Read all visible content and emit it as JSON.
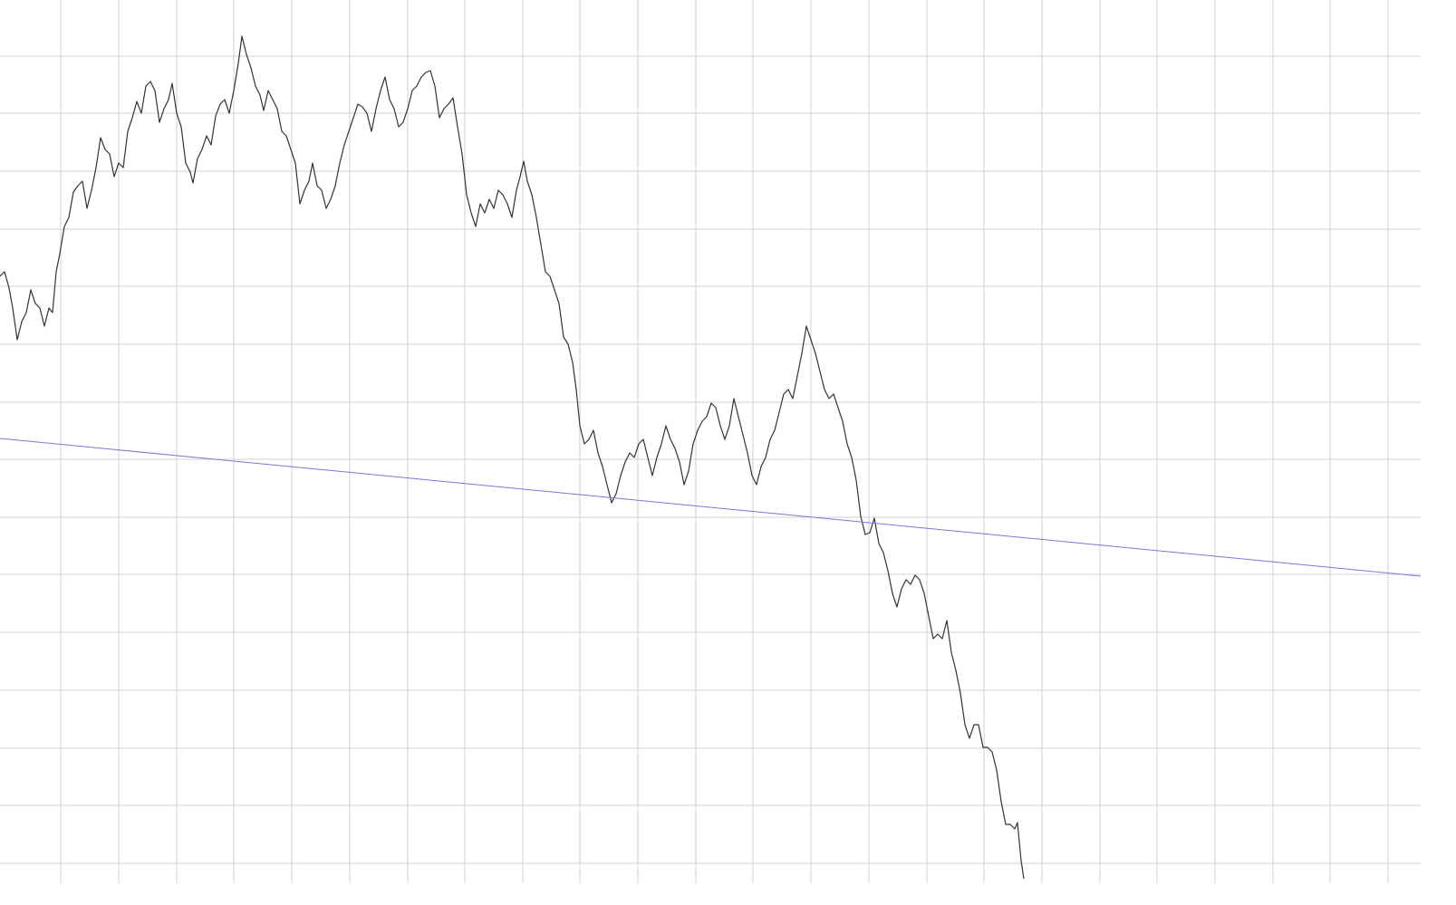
{
  "chart_data": {
    "type": "line",
    "xlim": [
      0,
      1568
    ],
    "ylim": [
      0,
      975
    ],
    "xticks": [
      67,
      131,
      195,
      258,
      322,
      386,
      450,
      513,
      577,
      640,
      704,
      768,
      831,
      895,
      959,
      1023,
      1086,
      1150,
      1214,
      1277,
      1341,
      1405,
      1468,
      1532
    ],
    "yticks": [
      22,
      86,
      149,
      213,
      277,
      341,
      404,
      468,
      531,
      595,
      659,
      722,
      786,
      850,
      913
    ],
    "grid": true,
    "series": [
      {
        "color": "#333333",
        "x": [
          0,
          5,
          10,
          14,
          19,
          24,
          29,
          34,
          39,
          44,
          49,
          54,
          58,
          62,
          66,
          71,
          76,
          81,
          86,
          91,
          96,
          101,
          106,
          111,
          116,
          121,
          126,
          131,
          136,
          141,
          146,
          151,
          156,
          161,
          166,
          171,
          176,
          181,
          186,
          190,
          195,
          200,
          205,
          210,
          213,
          218,
          223,
          228,
          233,
          238,
          243,
          248,
          253,
          258,
          263,
          267,
          272,
          277,
          282,
          287,
          291,
          296,
          301,
          306,
          311,
          316,
          321,
          326,
          331,
          336,
          341,
          345,
          350,
          355,
          360,
          365,
          370,
          375,
          380,
          385,
          390,
          395,
          400,
          405,
          410,
          415,
          420,
          425,
          430,
          435,
          440,
          445,
          450,
          455,
          460,
          465,
          470,
          475,
          480,
          485,
          490,
          495,
          500,
          505,
          510,
          515,
          520,
          525,
          530,
          535,
          540,
          545,
          550,
          555,
          560,
          565,
          570,
          574,
          578,
          582,
          587,
          592,
          597,
          602,
          607,
          612,
          617,
          622,
          627,
          632,
          636,
          640,
          645,
          650,
          655,
          660,
          665,
          670,
          675,
          680,
          685,
          690,
          695,
          700,
          705,
          710,
          715,
          720,
          725,
          730,
          735,
          740,
          745,
          750,
          755,
          760,
          765,
          770,
          775,
          780,
          785,
          790,
          795,
          800,
          805,
          810,
          815,
          820,
          825,
          830,
          835,
          840,
          845,
          850,
          855,
          860,
          865,
          870,
          875,
          880,
          885,
          890,
          895,
          900,
          905,
          910,
          915,
          920,
          925,
          930,
          935,
          940,
          945,
          950,
          955,
          960,
          965,
          970,
          975,
          980,
          985,
          990,
          995,
          1000,
          1005,
          1010,
          1015,
          1020,
          1025,
          1030,
          1035,
          1040,
          1045,
          1050,
          1055,
          1060,
          1065,
          1070,
          1075,
          1080,
          1085,
          1090,
          1095,
          1100,
          1105,
          1110,
          1115,
          1120,
          1123,
          1127,
          1130
        ],
        "values": [
          670,
          675,
          657,
          635,
          600,
          620,
          630,
          655,
          640,
          635,
          615,
          635,
          630,
          675,
          695,
          725,
          735,
          763,
          770,
          775,
          745,
          765,
          790,
          823,
          810,
          805,
          780,
          795,
          790,
          830,
          845,
          863,
          850,
          880,
          885,
          875,
          840,
          855,
          865,
          883,
          850,
          835,
          795,
          785,
          773,
          800,
          810,
          825,
          815,
          847,
          860,
          865,
          850,
          875,
          905,
          935,
          915,
          900,
          880,
          870,
          853,
          875,
          865,
          855,
          830,
          825,
          810,
          795,
          750,
          765,
          775,
          795,
          770,
          765,
          745,
          755,
          770,
          795,
          815,
          830,
          845,
          860,
          857,
          850,
          830,
          855,
          875,
          890,
          865,
          855,
          835,
          840,
          855,
          875,
          880,
          890,
          895,
          897,
          880,
          845,
          855,
          860,
          867,
          835,
          805,
          760,
          740,
          725,
          750,
          740,
          755,
          745,
          765,
          760,
          750,
          735,
          765,
          780,
          797,
          775,
          760,
          735,
          705,
          675,
          670,
          655,
          640,
          603,
          595,
          575,
          545,
          505,
          485,
          490,
          500,
          475,
          460,
          440,
          420,
          430,
          450,
          465,
          475,
          470,
          485,
          490,
          470,
          450,
          470,
          485,
          505,
          490,
          480,
          465,
          440,
          455,
          485,
          500,
          510,
          515,
          530,
          525,
          505,
          490,
          505,
          535,
          515,
          495,
          475,
          450,
          440,
          460,
          470,
          490,
          500,
          520,
          540,
          545,
          535,
          560,
          585,
          615,
          600,
          585,
          565,
          545,
          535,
          540,
          525,
          510,
          485,
          470,
          445,
          405,
          385,
          387,
          403,
          375,
          365,
          345,
          320,
          305,
          325,
          335,
          330,
          340,
          335,
          320,
          295,
          270,
          275,
          270,
          290,
          255,
          235,
          210,
          175,
          160,
          175,
          175,
          150,
          150,
          145,
          125,
          90,
          65,
          65,
          60,
          67,
          25,
          5
        ]
      },
      {
        "color": "#7777dd",
        "x": [
          0,
          1568
        ],
        "values": [
          491,
          339
        ]
      }
    ]
  }
}
